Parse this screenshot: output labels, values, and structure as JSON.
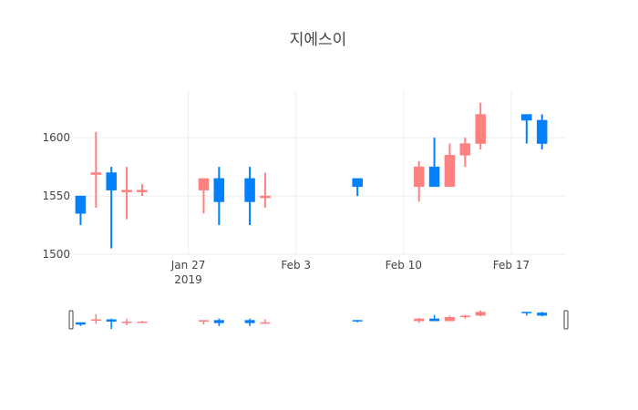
{
  "chart_data": {
    "type": "candlestick",
    "title": "지에스이",
    "x_axis": {
      "type": "date",
      "range": [
        "2019-01-19T12:00",
        "2019-02-20T12:00"
      ],
      "ticks": [
        {
          "date": "2019-01-27",
          "label": "Jan 27",
          "sublabel": "2019"
        },
        {
          "date": "2019-02-03",
          "label": "Feb 3",
          "sublabel": ""
        },
        {
          "date": "2019-02-10",
          "label": "Feb 10",
          "sublabel": ""
        },
        {
          "date": "2019-02-17",
          "label": "Feb 17",
          "sublabel": ""
        }
      ]
    },
    "y_axis": {
      "range": [
        1500,
        1640
      ],
      "ticks": [
        1500,
        1550,
        1600
      ],
      "grid": true
    },
    "colors": {
      "increasing": "#ff8080",
      "decreasing": "#0080ff"
    },
    "range_slider": true,
    "candles": [
      {
        "date": "2019-01-20",
        "open": 1550,
        "high": 1550,
        "low": 1525,
        "close": 1535
      },
      {
        "date": "2019-01-21",
        "open": 1570,
        "high": 1605,
        "low": 1540,
        "close": 1570
      },
      {
        "date": "2019-01-22",
        "open": 1570,
        "high": 1575,
        "low": 1505,
        "close": 1555
      },
      {
        "date": "2019-01-23",
        "open": 1555,
        "high": 1575,
        "low": 1530,
        "close": 1555
      },
      {
        "date": "2019-01-24",
        "open": 1555,
        "high": 1560,
        "low": 1550,
        "close": 1555
      },
      {
        "date": "2019-01-28",
        "open": 1555,
        "high": 1565,
        "low": 1535,
        "close": 1565
      },
      {
        "date": "2019-01-29",
        "open": 1565,
        "high": 1575,
        "low": 1525,
        "close": 1545
      },
      {
        "date": "2019-01-31",
        "open": 1565,
        "high": 1575,
        "low": 1525,
        "close": 1545
      },
      {
        "date": "2019-02-01",
        "open": 1550,
        "high": 1570,
        "low": 1540,
        "close": 1550
      },
      {
        "date": "2019-02-07",
        "open": 1565,
        "high": 1565,
        "low": 1550,
        "close": 1558
      },
      {
        "date": "2019-02-11",
        "open": 1558,
        "high": 1580,
        "low": 1545,
        "close": 1575
      },
      {
        "date": "2019-02-12",
        "open": 1575,
        "high": 1600,
        "low": 1558,
        "close": 1558
      },
      {
        "date": "2019-02-13",
        "open": 1558,
        "high": 1595,
        "low": 1558,
        "close": 1585
      },
      {
        "date": "2019-02-14",
        "open": 1585,
        "high": 1600,
        "low": 1575,
        "close": 1595
      },
      {
        "date": "2019-02-15",
        "open": 1595,
        "high": 1630,
        "low": 1590,
        "close": 1620
      },
      {
        "date": "2019-02-18",
        "open": 1620,
        "high": 1620,
        "low": 1595,
        "close": 1615
      },
      {
        "date": "2019-02-19",
        "open": 1615,
        "high": 1620,
        "low": 1590,
        "close": 1595
      }
    ]
  }
}
